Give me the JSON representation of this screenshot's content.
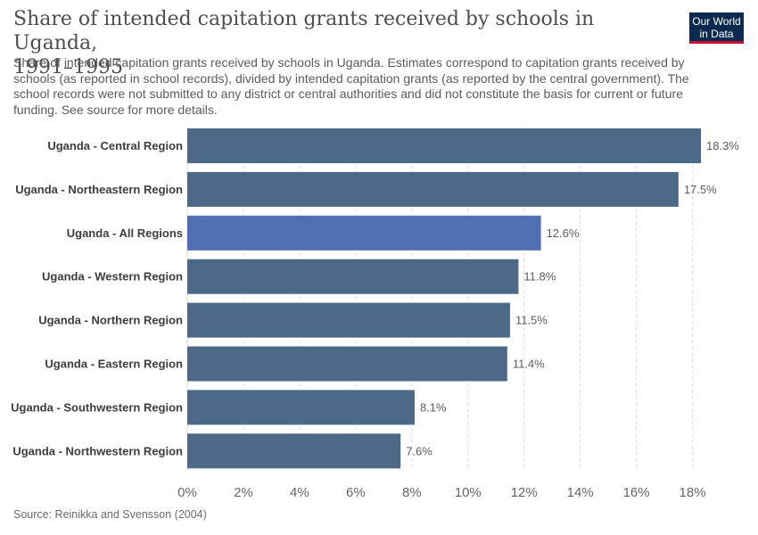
{
  "header": {
    "title_line1": "Share of intended capitation grants received by schools in Uganda,",
    "title_line2": "1991–1995",
    "subtitle": "Share of intended capitation grants received by schools in Uganda. Estimates correspond to capitation grants received by schools (as reported in school records), divided by intended capitation grants (as reported by the central government). The school records were not submitted to any district or central authorities and did not constitute the basis for current or future funding. See source for more details.",
    "logo_line1": "Our World",
    "logo_line2": "in Data"
  },
  "footer": {
    "source": "Source: Reinikka and Svensson (2004)"
  },
  "colors": {
    "bar": "#4c6a87",
    "highlight_bar": "#5070b4",
    "grid": "#dddddd"
  },
  "chart_data": {
    "type": "bar",
    "orientation": "horizontal",
    "categories": [
      "Uganda - Central Region",
      "Uganda - Northeastern Region",
      "Uganda - All Regions",
      "Uganda - Western Region",
      "Uganda - Northern Region",
      "Uganda - Eastern Region",
      "Uganda - Southwestern Region",
      "Uganda - Northwestern Region"
    ],
    "values": [
      18.3,
      17.5,
      12.6,
      11.8,
      11.5,
      11.4,
      8.1,
      7.6
    ],
    "value_labels": [
      "18.3%",
      "17.5%",
      "12.6%",
      "11.8%",
      "11.5%",
      "11.4%",
      "8.1%",
      "7.6%"
    ],
    "highlight": "Uganda - All Regions",
    "x_ticks": [
      0,
      2,
      4,
      6,
      8,
      10,
      12,
      14,
      16,
      18
    ],
    "x_tick_labels": [
      "0%",
      "2%",
      "4%",
      "6%",
      "8%",
      "10%",
      "12%",
      "14%",
      "16%",
      "18%"
    ],
    "xlim": [
      0,
      18.3
    ],
    "grid": true,
    "grid_style": "dashed-vertical"
  }
}
